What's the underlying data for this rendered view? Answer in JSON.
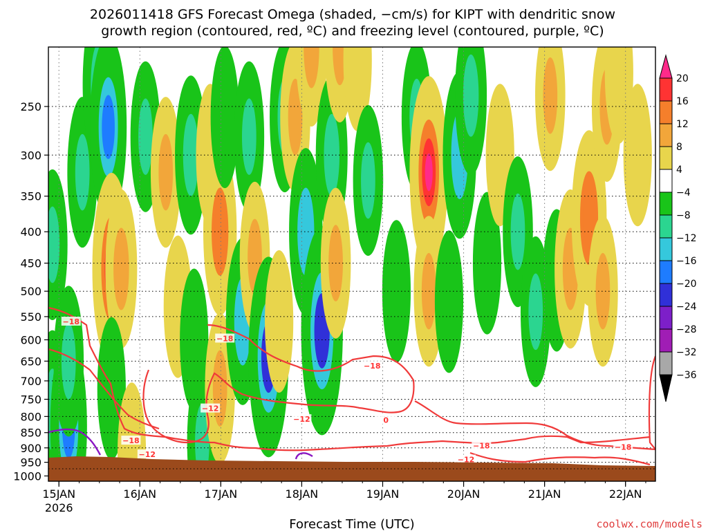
{
  "chart_data": {
    "type": "heatmap",
    "title_line1": "2026011418 GFS Forecast Omega (shaded, −cm/s) for KIPT with dendritic snow",
    "title_line2": "growth region (contoured, red, ºC) and freezing level (contoured, purple, ºC)",
    "xlabel": "Forecast Time (UTC)",
    "ylabel": "",
    "credit": "coolwx.com/models",
    "x_ticks": [
      {
        "label": "15JAN",
        "sublabel": "2026",
        "day": 0.13
      },
      {
        "label": "16JAN",
        "day": 1.13
      },
      {
        "label": "17JAN",
        "day": 2.13
      },
      {
        "label": "18JAN",
        "day": 3.13
      },
      {
        "label": "19JAN",
        "day": 4.13
      },
      {
        "label": "20JAN",
        "day": 5.13
      },
      {
        "label": "21JAN",
        "day": 6.13
      },
      {
        "label": "22JAN",
        "day": 7.13
      }
    ],
    "xlim_days": [
      0,
      7.5
    ],
    "y_ticks": [
      "250",
      "300",
      "350",
      "400",
      "450",
      "500",
      "550",
      "600",
      "650",
      "700",
      "750",
      "800",
      "850",
      "900",
      "950",
      "1000"
    ],
    "ylim_hpa": [
      200,
      1020
    ],
    "colorbar": {
      "ticks": [
        "20",
        "16",
        "12",
        "8",
        "4",
        "−4",
        "−8",
        "−12",
        "−16",
        "−20",
        "−24",
        "−28",
        "−32",
        "−36"
      ],
      "colors": [
        "#ff2a8a",
        "#ff3333",
        "#f57f2b",
        "#f2a63a",
        "#e8d54c",
        "#ffffff",
        "#19c419",
        "#2bd590",
        "#35c8dc",
        "#1e7cff",
        "#3030d8",
        "#7d1fc9",
        "#a01db5",
        "#a8a8a8",
        "#000000"
      ]
    },
    "omega_cells": [
      {
        "t": 0.05,
        "p": 420,
        "v": -8
      },
      {
        "t": 0.05,
        "p": 780,
        "v": -10
      },
      {
        "t": 0.25,
        "p": 830,
        "v": -16
      },
      {
        "t": 0.25,
        "p": 650,
        "v": -8
      },
      {
        "t": 0.42,
        "p": 320,
        "v": -8
      },
      {
        "t": 0.62,
        "p": 230,
        "v": -10
      },
      {
        "t": 0.74,
        "p": 270,
        "v": -16
      },
      {
        "t": 0.78,
        "p": 460,
        "v": 18
      },
      {
        "t": 0.9,
        "p": 460,
        "v": 10
      },
      {
        "t": 0.78,
        "p": 720,
        "v": -6
      },
      {
        "t": 1.03,
        "p": 920,
        "v": 6
      },
      {
        "t": 1.2,
        "p": 280,
        "v": -8
      },
      {
        "t": 1.45,
        "p": 320,
        "v": 8
      },
      {
        "t": 1.6,
        "p": 530,
        "v": 6
      },
      {
        "t": 1.76,
        "p": 300,
        "v": -10
      },
      {
        "t": 1.8,
        "p": 600,
        "v": -6
      },
      {
        "t": 1.9,
        "p": 880,
        "v": -8
      },
      {
        "t": 2.0,
        "p": 300,
        "v": 6
      },
      {
        "t": 2.12,
        "p": 400,
        "v": 12
      },
      {
        "t": 2.12,
        "p": 720,
        "v": 8
      },
      {
        "t": 2.18,
        "p": 260,
        "v": -6
      },
      {
        "t": 2.4,
        "p": 560,
        "v": -12
      },
      {
        "t": 2.48,
        "p": 280,
        "v": -8
      },
      {
        "t": 2.55,
        "p": 440,
        "v": 8
      },
      {
        "t": 2.72,
        "p": 640,
        "v": -20
      },
      {
        "t": 2.85,
        "p": 560,
        "v": 6
      },
      {
        "t": 2.92,
        "p": 260,
        "v": -8
      },
      {
        "t": 3.05,
        "p": 260,
        "v": 8
      },
      {
        "t": 3.18,
        "p": 400,
        "v": -12
      },
      {
        "t": 3.25,
        "p": 200,
        "v": 10
      },
      {
        "t": 3.38,
        "p": 580,
        "v": -22
      },
      {
        "t": 3.5,
        "p": 300,
        "v": -10
      },
      {
        "t": 3.6,
        "p": 200,
        "v": 8
      },
      {
        "t": 3.55,
        "p": 450,
        "v": 8
      },
      {
        "t": 3.82,
        "p": 210,
        "v": 6
      },
      {
        "t": 3.95,
        "p": 330,
        "v": -8
      },
      {
        "t": 4.3,
        "p": 500,
        "v": -6
      },
      {
        "t": 4.55,
        "p": 260,
        "v": -8
      },
      {
        "t": 4.7,
        "p": 320,
        "v": 18
      },
      {
        "t": 4.7,
        "p": 500,
        "v": 8
      },
      {
        "t": 4.95,
        "p": 520,
        "v": -6
      },
      {
        "t": 5.08,
        "p": 300,
        "v": -12
      },
      {
        "t": 5.22,
        "p": 240,
        "v": -10
      },
      {
        "t": 5.42,
        "p": 450,
        "v": -6
      },
      {
        "t": 5.58,
        "p": 300,
        "v": 6
      },
      {
        "t": 5.8,
        "p": 400,
        "v": -8
      },
      {
        "t": 6.02,
        "p": 540,
        "v": -8
      },
      {
        "t": 6.28,
        "p": 480,
        "v": -6
      },
      {
        "t": 6.2,
        "p": 240,
        "v": 8
      },
      {
        "t": 6.45,
        "p": 460,
        "v": 10
      },
      {
        "t": 6.68,
        "p": 380,
        "v": 14
      },
      {
        "t": 6.85,
        "p": 500,
        "v": 8
      },
      {
        "t": 6.9,
        "p": 250,
        "v": 8
      },
      {
        "t": 7.05,
        "p": 220,
        "v": 6
      },
      {
        "t": 7.28,
        "p": 300,
        "v": 6
      }
    ],
    "contour_labels_red": [
      {
        "text": "−18",
        "t": 0.28,
        "p": 563
      },
      {
        "text": "−12",
        "t": 2.0,
        "p": 780
      },
      {
        "text": "−18",
        "t": 2.18,
        "p": 600
      },
      {
        "text": "−18",
        "t": 1.02,
        "p": 880
      },
      {
        "text": "−12",
        "t": 1.22,
        "p": 927
      },
      {
        "text": "−12",
        "t": 3.13,
        "p": 812
      },
      {
        "text": "−18",
        "t": 4.0,
        "p": 665
      },
      {
        "text": "0",
        "t": 4.17,
        "p": 815
      },
      {
        "text": "−18",
        "t": 5.35,
        "p": 897
      },
      {
        "text": "−12",
        "t": 5.16,
        "p": 945
      },
      {
        "text": "−18",
        "t": 7.1,
        "p": 902
      }
    ]
  }
}
